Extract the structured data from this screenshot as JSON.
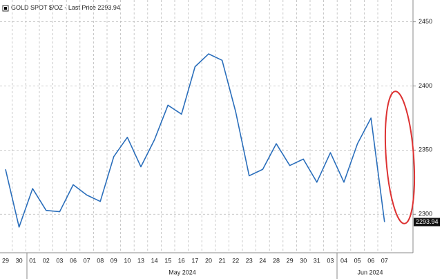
{
  "chart_data": {
    "type": "line",
    "categories": [
      "29",
      "30",
      "01",
      "02",
      "03",
      "06",
      "07",
      "08",
      "09",
      "10",
      "13",
      "14",
      "15",
      "16",
      "17",
      "20",
      "21",
      "22",
      "23",
      "24",
      "28",
      "29",
      "30",
      "31",
      "03",
      "04",
      "05",
      "06",
      "07"
    ],
    "month_labels": [
      "May 2024",
      "Jun 2024"
    ],
    "series": [
      {
        "name": "GOLD SPOT $/OZ - Last Price",
        "color": "#2a6ebb",
        "values": [
          2335,
          2290,
          2320,
          2303,
          2302,
          2323,
          2315,
          2310,
          2345,
          2360,
          2337,
          2358,
          2385,
          2378,
          2415,
          2425,
          2420,
          2380,
          2330,
          2335,
          2355,
          2338,
          2343,
          2325,
          2348,
          2325,
          2355,
          2375,
          2293.94
        ]
      }
    ],
    "ylim": [
      2270,
      2467
    ],
    "yticks": [
      2300,
      2350,
      2400,
      2450
    ],
    "grid": true
  }
}
